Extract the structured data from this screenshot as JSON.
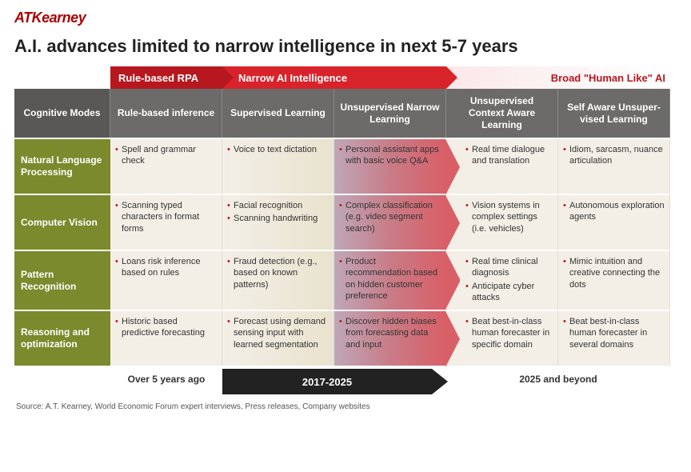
{
  "brand": "ATKearney",
  "title": "A.I. advances limited to narrow intelligence in next 5-7 years",
  "phases": {
    "rpa": "Rule-based RPA",
    "narrow": "Narrow AI Intelligence",
    "broad": "Broad \"Human Like\" AI"
  },
  "columns": [
    "Cognitive Modes",
    "Rule-based inference",
    "Supervised Learning",
    "Unsupervised Narrow Learning",
    "Unsupervised Context Aware Learning",
    "Self Aware Unsuper- vised Learning"
  ],
  "rows": [
    {
      "label": "Natural Language Processing",
      "cells": [
        [
          "Spell and grammar check"
        ],
        [
          "Voice to text dictation"
        ],
        [
          "Personal assistant apps with basic voice Q&A"
        ],
        [
          "Real time dialogue and translation"
        ],
        [
          "Idiom, sarcasm, nuance articulation"
        ]
      ]
    },
    {
      "label": "Computer Vision",
      "cells": [
        [
          "Scanning typed characters in format forms"
        ],
        [
          "Facial recognition",
          "Scanning handwriting"
        ],
        [
          "Complex classification (e.g. video segment search)"
        ],
        [
          "Vision systems in complex settings (i.e. vehicles)"
        ],
        [
          "Autonomous exploration agents"
        ]
      ]
    },
    {
      "label": "Pattern Recognition",
      "cells": [
        [
          "Loans risk inference based on rules"
        ],
        [
          "Fraud detection (e.g., based on known patterns)"
        ],
        [
          "Product recommendation based on hidden customer preference"
        ],
        [
          "Real time clinical diagnosis",
          "Anticipate cyber attacks"
        ],
        [
          "Mimic intuition and creative connecting the dots"
        ]
      ]
    },
    {
      "label": "Reasoning and optimization",
      "cells": [
        [
          "Historic based predictive forecasting"
        ],
        [
          "Forecast using demand sensing input with learned segmentation"
        ],
        [
          "Discover hidden biases from forecasting data and input"
        ],
        [
          "Beat best-in-class human forecaster in specific domain"
        ],
        [
          "Beat best-in-class human forecaster in several domains"
        ]
      ]
    }
  ],
  "timeline": {
    "past": "Over 5 years ago",
    "mid": "2017-2025",
    "future": "2025 and beyond"
  },
  "source": "Source: A.T. Kearney, World Economic Forum expert interviews, Press releases, Company websites",
  "colors": {
    "brand": "#a00000",
    "phase_dark": "#b7181f",
    "phase_mid": "#d9232a",
    "header_bg": "#6d6b6a",
    "row_label_bg": "#7a8a2c",
    "cell_bg": "#f3efe7",
    "timeline_bar": "#222222"
  }
}
